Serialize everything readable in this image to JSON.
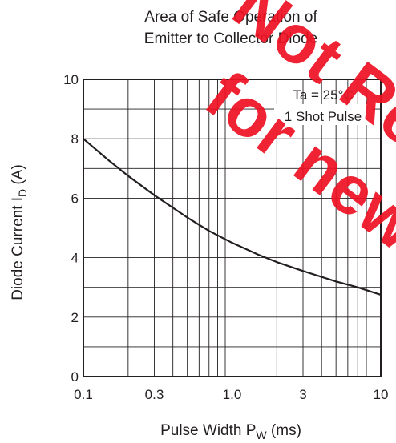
{
  "chart_data": {
    "type": "line",
    "title": [
      "Area of Safe Operation of",
      "Emitter to Collector Diode"
    ],
    "xlabel": {
      "main": "Pulse Width  P",
      "sub": "W",
      "unit": "  (ms)"
    },
    "ylabel": {
      "main": "Diode Current  I",
      "sub": "D",
      "unit": "  (A)"
    },
    "x_scale": "log",
    "xlim": [
      0.1,
      10
    ],
    "ylim": [
      0,
      10
    ],
    "x_ticks": [
      {
        "value": 0.1,
        "label": "0.1"
      },
      {
        "value": 0.3,
        "label": "0.3"
      },
      {
        "value": 1,
        "label": "1.0"
      },
      {
        "value": 3,
        "label": "3"
      },
      {
        "value": 10,
        "label": "10"
      }
    ],
    "y_ticks": [
      {
        "value": 0,
        "label": "0"
      },
      {
        "value": 2,
        "label": "2"
      },
      {
        "value": 4,
        "label": "4"
      },
      {
        "value": 6,
        "label": "6"
      },
      {
        "value": 8,
        "label": "8"
      },
      {
        "value": 10,
        "label": "10"
      }
    ],
    "grid": true,
    "annotations": [
      "Ta = 25°C",
      "1 Shot Pulse"
    ],
    "series": [
      {
        "x": [
          0.1,
          0.15,
          0.2,
          0.3,
          0.5,
          0.7,
          1.0,
          1.5,
          2.0,
          3.0,
          5.0,
          7.0,
          10.0
        ],
        "y": [
          8.0,
          7.25,
          6.75,
          6.1,
          5.35,
          4.9,
          4.5,
          4.1,
          3.85,
          3.55,
          3.2,
          3.0,
          2.75
        ]
      }
    ],
    "line_color": "#231f20"
  },
  "watermark": {
    "text": "Not Recommended for new design",
    "color": "#ee1122"
  }
}
